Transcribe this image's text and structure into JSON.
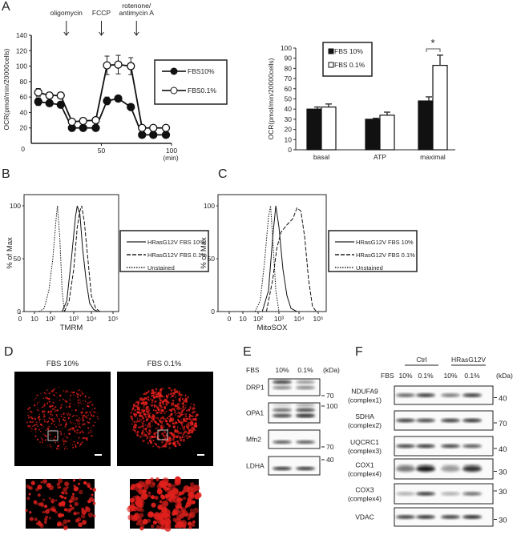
{
  "panel_labels": {
    "a": "A",
    "b": "B",
    "c": "C",
    "d": "D",
    "e": "E",
    "f": "F"
  },
  "chart_data": [
    {
      "type": "line",
      "panel": "A",
      "ylabel": "OCR(pmol/min/20000cells)",
      "xlabel": "(min)",
      "xlim": [
        0,
        100
      ],
      "ylim": [
        0,
        140
      ],
      "xticks": [
        0,
        50,
        100
      ],
      "yticks": [
        20,
        40,
        60,
        80,
        100,
        120,
        140
      ],
      "annotations": [
        {
          "text": "oligomycin",
          "x": 25
        },
        {
          "text": "FCCP",
          "x": 50
        },
        {
          "text": "rotenone/",
          "text2": "antimycin A",
          "x": 75
        }
      ],
      "legend": "right",
      "x": [
        5,
        13,
        21,
        29,
        37,
        46,
        54,
        62,
        71,
        79,
        87,
        96
      ],
      "series": [
        {
          "name": "FBS10%",
          "marker": "filled",
          "values": [
            54,
            52,
            50,
            20,
            20,
            20,
            55,
            58,
            47,
            11,
            11,
            11
          ],
          "err": [
            5,
            4,
            4,
            2,
            2,
            2,
            5,
            4,
            3,
            2,
            2,
            2
          ]
        },
        {
          "name": "FBS0.1%",
          "marker": "open",
          "values": [
            66,
            62,
            62,
            28,
            29,
            30,
            101,
            102,
            100,
            20,
            20,
            20
          ],
          "err": [
            5,
            4,
            4,
            2,
            2,
            2,
            12,
            12,
            11,
            2,
            2,
            2
          ]
        }
      ]
    },
    {
      "type": "bar",
      "panel": "A",
      "ylabel": "OCR(pmol/min/20000cells)",
      "ylim": [
        0,
        100
      ],
      "yticks": [
        0,
        10,
        20,
        30,
        40,
        50,
        60,
        70,
        80,
        90,
        100
      ],
      "categories": [
        "basal",
        "ATP",
        "maximal"
      ],
      "legend": "top-left",
      "series": [
        {
          "name": "FBS 10%",
          "color": "#111111",
          "values": [
            40,
            30,
            48
          ],
          "err": [
            2,
            1,
            4
          ]
        },
        {
          "name": "FBS 0.1%",
          "color": "#ffffff",
          "values": [
            42,
            34,
            83
          ],
          "err": [
            3,
            3,
            10
          ]
        }
      ],
      "significance": {
        "category": "maximal",
        "label": "*"
      }
    },
    {
      "type": "line",
      "panel": "B",
      "xlabel": "TMRM",
      "ylabel": "% of Max",
      "xscale": "log",
      "xtick_labels": [
        "0",
        "10",
        "10²",
        "10³",
        "10⁴",
        "10⁵"
      ],
      "ytick_labels": [
        "0",
        "50",
        "100"
      ],
      "legend": "right",
      "series": [
        {
          "name": "HRasG12V FBS 10%",
          "style": "solid",
          "points": [
            [
              2.5,
              0
            ],
            [
              2.7,
              10
            ],
            [
              2.9,
              50
            ],
            [
              3.1,
              90
            ],
            [
              3.2,
              100
            ],
            [
              3.35,
              92
            ],
            [
              3.5,
              60
            ],
            [
              3.7,
              30
            ],
            [
              3.9,
              8
            ],
            [
              4.1,
              2
            ],
            [
              4.3,
              0
            ]
          ]
        },
        {
          "name": "HRasG12V FBS 0.1%",
          "style": "dashed",
          "points": [
            [
              2.6,
              0
            ],
            [
              2.8,
              10
            ],
            [
              3.0,
              40
            ],
            [
              3.2,
              80
            ],
            [
              3.35,
              95
            ],
            [
              3.45,
              100
            ],
            [
              3.6,
              85
            ],
            [
              3.8,
              50
            ],
            [
              4.0,
              15
            ],
            [
              4.2,
              3
            ],
            [
              4.4,
              0
            ]
          ]
        },
        {
          "name": "Unstained",
          "style": "dotted",
          "points": [
            [
              1.3,
              0
            ],
            [
              1.6,
              3
            ],
            [
              1.9,
              20
            ],
            [
              2.1,
              50
            ],
            [
              2.25,
              90
            ],
            [
              2.3,
              100
            ],
            [
              2.4,
              70
            ],
            [
              2.5,
              20
            ],
            [
              2.6,
              0
            ]
          ]
        }
      ]
    },
    {
      "type": "line",
      "panel": "C",
      "xlabel": "MitoSOX",
      "ylabel": "% of Max",
      "xscale": "log",
      "xtick_labels": [
        "0",
        "10",
        "10²",
        "10³",
        "10⁴",
        "10⁵"
      ],
      "ytick_labels": [
        "0",
        "50",
        "100"
      ],
      "legend": "right",
      "series": [
        {
          "name": "HRasG12V FBS 10%",
          "style": "solid",
          "points": [
            [
              2.2,
              0
            ],
            [
              2.5,
              20
            ],
            [
              2.7,
              70
            ],
            [
              2.85,
              100
            ],
            [
              3.0,
              80
            ],
            [
              3.2,
              40
            ],
            [
              3.4,
              15
            ],
            [
              3.6,
              3
            ],
            [
              3.9,
              0
            ]
          ]
        },
        {
          "name": "HRasG12V FBS 0.1%",
          "style": "dashed",
          "points": [
            [
              2.4,
              0
            ],
            [
              2.7,
              30
            ],
            [
              2.9,
              60
            ],
            [
              3.1,
              75
            ],
            [
              3.4,
              82
            ],
            [
              3.7,
              88
            ],
            [
              3.9,
              98
            ],
            [
              4.1,
              95
            ],
            [
              4.3,
              70
            ],
            [
              4.5,
              30
            ],
            [
              4.7,
              5
            ],
            [
              4.9,
              0
            ]
          ]
        },
        {
          "name": "Unstained",
          "style": "dotted",
          "points": [
            [
              1.8,
              0
            ],
            [
              2.1,
              10
            ],
            [
              2.3,
              45
            ],
            [
              2.5,
              90
            ],
            [
              2.6,
              100
            ],
            [
              2.7,
              70
            ],
            [
              2.85,
              20
            ],
            [
              3.0,
              0
            ]
          ]
        }
      ]
    }
  ],
  "panel_d": {
    "left_title": "FBS 10%",
    "right_title": "FBS 0.1%",
    "stain_color": "#e0201c"
  },
  "panel_e": {
    "fbs_label": "FBS",
    "lanes": [
      "10%",
      "0.1%"
    ],
    "unit": "(kDa)",
    "rows": [
      "DRP1",
      "OPA1",
      "Mfn2",
      "LDHA"
    ],
    "markers": [
      "70",
      "100",
      "70",
      "40"
    ]
  },
  "panel_f": {
    "groups": [
      "Ctrl",
      "HRasG12V"
    ],
    "fbs_label": "FBS",
    "lanes": [
      "10%",
      "0.1%",
      "10%",
      "0.1%"
    ],
    "unit": "(kDa)",
    "rows": [
      {
        "name": "NDUFA9",
        "sub": "(complex1)",
        "marker": "40"
      },
      {
        "name": "SDHA",
        "sub": "(complex2)",
        "marker": "70"
      },
      {
        "name": "UQCRC1",
        "sub": "(complex3)",
        "marker": "40"
      },
      {
        "name": "COX1",
        "sub": "(complex4)",
        "marker": "30"
      },
      {
        "name": "COX3",
        "sub": "(complex4)",
        "marker": "30"
      },
      {
        "name": "VDAC",
        "sub": "",
        "marker": "30"
      }
    ]
  }
}
